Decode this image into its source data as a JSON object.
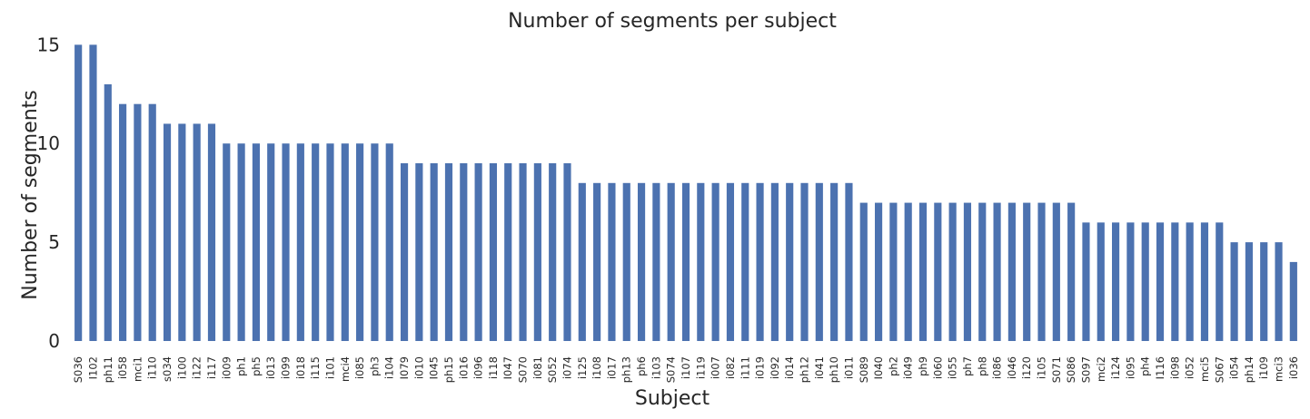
{
  "chart_data": {
    "type": "bar",
    "title": "Number of segments per subject",
    "xlabel": "Subject",
    "ylabel": "Number of segments",
    "ylim": [
      0,
      15.2
    ],
    "yticks": [
      0,
      5,
      10,
      15
    ],
    "grid": false,
    "bar_color": "#4c72b0",
    "categories": [
      "S036",
      "I102",
      "ph11",
      "i058",
      "mci1",
      "i110",
      "s034",
      "i100",
      "i122",
      "i117",
      "i009",
      "ph1",
      "ph5",
      "i013",
      "i099",
      "i018",
      "i115",
      "i101",
      "mci4",
      "i085",
      "ph3",
      "i104",
      "I079",
      "i010",
      "I045",
      "ph15",
      "i016",
      "i096",
      "i118",
      "I047",
      "S070",
      "i081",
      "S052",
      "i074",
      "i125",
      "i108",
      "i017",
      "ph13",
      "ph6",
      "i103",
      "S074",
      "i107",
      "i119",
      "i007",
      "i082",
      "i111",
      "i019",
      "i092",
      "i014",
      "ph12",
      "i041",
      "ph10",
      "i011",
      "S089",
      "I040",
      "ph2",
      "i049",
      "ph9",
      "i060",
      "i055",
      "ph7",
      "ph8",
      "i086",
      "i046",
      "i120",
      "i105",
      "S071",
      "S086",
      "S097",
      "mci2",
      "i124",
      "i095",
      "ph4",
      "I116",
      "i098",
      "i052",
      "mci5",
      "S067",
      "i054",
      "ph14",
      "i109",
      "mci3",
      "i036"
    ],
    "values": [
      15,
      15,
      13,
      12,
      12,
      12,
      11,
      11,
      11,
      11,
      10,
      10,
      10,
      10,
      10,
      10,
      10,
      10,
      10,
      10,
      10,
      10,
      9,
      9,
      9,
      9,
      9,
      9,
      9,
      9,
      9,
      9,
      9,
      9,
      8,
      8,
      8,
      8,
      8,
      8,
      8,
      8,
      8,
      8,
      8,
      8,
      8,
      8,
      8,
      8,
      8,
      8,
      8,
      7,
      7,
      7,
      7,
      7,
      7,
      7,
      7,
      7,
      7,
      7,
      7,
      7,
      7,
      7,
      6,
      6,
      6,
      6,
      6,
      6,
      6,
      6,
      6,
      6,
      5,
      5,
      5,
      5,
      4
    ]
  }
}
